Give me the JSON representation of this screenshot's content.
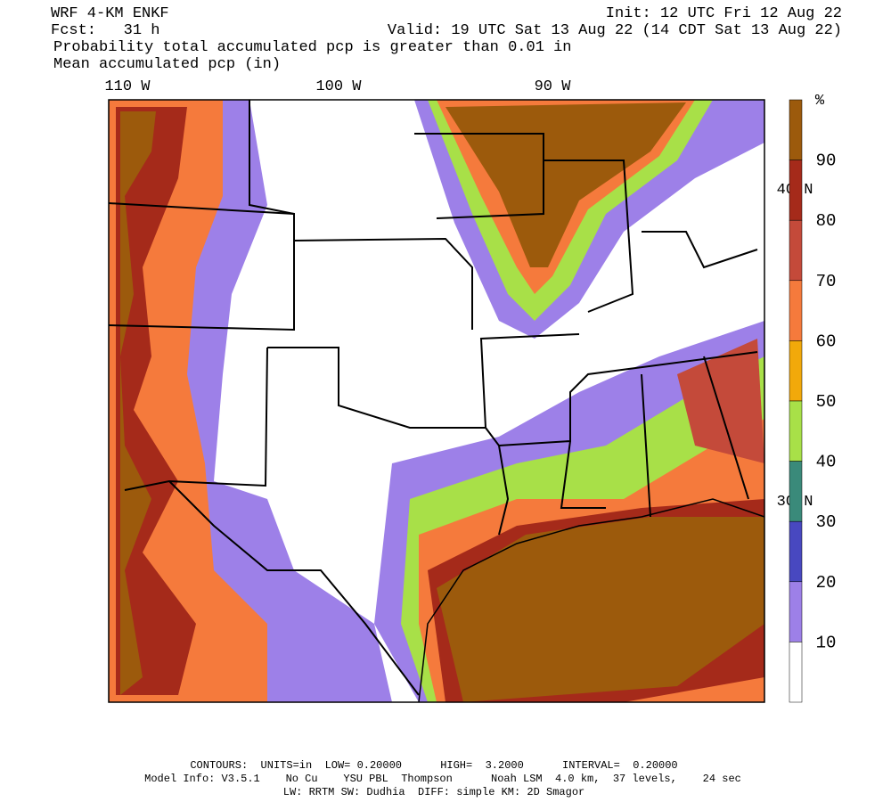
{
  "header": {
    "model": "WRF 4-KM ENKF",
    "init": "Init: 12 UTC Fri 12 Aug 22",
    "forecast": "Fcst:   31 h",
    "valid": "Valid: 19 UTC Sat 13 Aug 22 (14 CDT Sat 13 Aug 22)",
    "field": "Probability total accumulated pcp is greater than 0.01 in",
    "contours": "Mean accumulated pcp (in)"
  },
  "map": {
    "longitude_labels": [
      "110 W",
      "100 W",
      "90 W"
    ],
    "latitude_labels": [
      "40 N",
      "30 N"
    ]
  },
  "colorbar": {
    "unit": "%",
    "labels": [
      "90",
      "80",
      "70",
      "60",
      "50",
      "40",
      "30",
      "20",
      "10"
    ],
    "colors": [
      "#9c5a0c",
      "#a52a1a",
      "#c44a3a",
      "#f57a3c",
      "#f2a90a",
      "#a8e048",
      "#3a8a7a",
      "#4848c0",
      "#9d80e8",
      "#ffffff"
    ]
  },
  "footer": {
    "line1": "CONTOURS:  UNITS=in  LOW= 0.20000      HIGH=  3.2000      INTERVAL=  0.20000",
    "line2": "Model Info: V3.5.1    No Cu    YSU PBL  Thompson      Noah LSM  4.0 km,  37 levels,    24 sec",
    "line3": "LW: RRTM SW: Dudhia  DIFF: simple KM: 2D Smagor"
  }
}
